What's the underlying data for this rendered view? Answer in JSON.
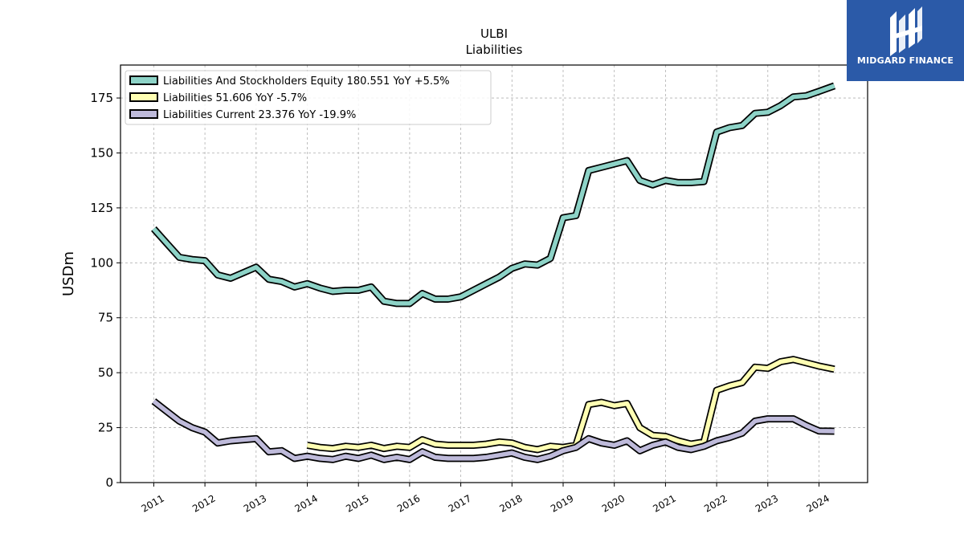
{
  "brand": {
    "name": "MIDGARD FINANCE",
    "color": "#2b5aa8"
  },
  "chart_data": {
    "type": "line",
    "title": "ULBI",
    "subtitle": "Liabilities",
    "ylabel": "USDm",
    "xlabel": "",
    "x_tick_labels": [
      "2011",
      "2012",
      "2013",
      "2014",
      "2015",
      "2016",
      "2017",
      "2018",
      "2019",
      "2020",
      "2021",
      "2022",
      "2023",
      "2024"
    ],
    "y_tick_labels": [
      "0",
      "25",
      "50",
      "75",
      "100",
      "125",
      "150",
      "175"
    ],
    "ylim": [
      0,
      190
    ],
    "grid": true,
    "legend_position": "top-left",
    "series": [
      {
        "name": "Liabilities And Stockholders Equity  180.551 YoY +5.5%",
        "color": "#8dd3c7",
        "points": [
          [
            2011.0,
            115.5
          ],
          [
            2011.25,
            109
          ],
          [
            2011.5,
            102.5
          ],
          [
            2011.75,
            101.5
          ],
          [
            2012.0,
            101
          ],
          [
            2012.25,
            94.5
          ],
          [
            2012.5,
            93
          ],
          [
            2012.75,
            95.5
          ],
          [
            2013.0,
            98
          ],
          [
            2013.25,
            92.5
          ],
          [
            2013.5,
            91.5
          ],
          [
            2013.75,
            89
          ],
          [
            2014.0,
            90.5
          ],
          [
            2014.25,
            88.5
          ],
          [
            2014.5,
            87
          ],
          [
            2014.75,
            87.5
          ],
          [
            2015.0,
            87.5
          ],
          [
            2015.25,
            89
          ],
          [
            2015.5,
            82.5
          ],
          [
            2015.75,
            81.5
          ],
          [
            2016.0,
            81.5
          ],
          [
            2016.25,
            86
          ],
          [
            2016.5,
            83.5
          ],
          [
            2016.75,
            83.5
          ],
          [
            2017.0,
            84.5
          ],
          [
            2017.25,
            87.5
          ],
          [
            2017.5,
            90.5
          ],
          [
            2017.75,
            93.5
          ],
          [
            2018.0,
            97.5
          ],
          [
            2018.25,
            99.5
          ],
          [
            2018.5,
            99
          ],
          [
            2018.75,
            102
          ],
          [
            2019.0,
            120.5
          ],
          [
            2019.25,
            121.5
          ],
          [
            2019.5,
            142
          ],
          [
            2019.75,
            143.5
          ],
          [
            2020.0,
            145
          ],
          [
            2020.25,
            146.5
          ],
          [
            2020.5,
            137.5
          ],
          [
            2020.75,
            135.5
          ],
          [
            2021.0,
            137.5
          ],
          [
            2021.25,
            136.5
          ],
          [
            2021.5,
            136.5
          ],
          [
            2021.75,
            137
          ],
          [
            2022.0,
            159.5
          ],
          [
            2022.25,
            161.5
          ],
          [
            2022.5,
            162.5
          ],
          [
            2022.75,
            168
          ],
          [
            2023.0,
            168.5
          ],
          [
            2023.25,
            171.5
          ],
          [
            2023.5,
            175.5
          ],
          [
            2023.75,
            176
          ],
          [
            2024.0,
            178
          ],
          [
            2024.3,
            180.551
          ]
        ]
      },
      {
        "name": "Liabilities  51.606 YoY -5.7%",
        "color": "#ffffb3",
        "points": [
          [
            2014.0,
            17
          ],
          [
            2014.25,
            16
          ],
          [
            2014.5,
            15.5
          ],
          [
            2014.75,
            16.5
          ],
          [
            2015.0,
            16
          ],
          [
            2015.25,
            17
          ],
          [
            2015.5,
            15.5
          ],
          [
            2015.75,
            16.5
          ],
          [
            2016.0,
            16
          ],
          [
            2016.25,
            19.5
          ],
          [
            2016.5,
            17.5
          ],
          [
            2016.75,
            17
          ],
          [
            2017.0,
            17
          ],
          [
            2017.25,
            17
          ],
          [
            2017.5,
            17.5
          ],
          [
            2017.75,
            18.5
          ],
          [
            2018.0,
            18
          ],
          [
            2018.25,
            16
          ],
          [
            2018.5,
            15
          ],
          [
            2018.75,
            16.5
          ],
          [
            2019.0,
            16
          ],
          [
            2019.25,
            17
          ],
          [
            2019.5,
            35.5
          ],
          [
            2019.75,
            36.5
          ],
          [
            2020.0,
            35
          ],
          [
            2020.25,
            36
          ],
          [
            2020.5,
            25
          ],
          [
            2020.75,
            21.5
          ],
          [
            2021.0,
            21
          ],
          [
            2021.25,
            19
          ],
          [
            2021.5,
            17.5
          ],
          [
            2021.75,
            18.5
          ],
          [
            2022.0,
            42
          ],
          [
            2022.25,
            44
          ],
          [
            2022.5,
            45.5
          ],
          [
            2022.75,
            52.5
          ],
          [
            2023.0,
            52
          ],
          [
            2023.25,
            55
          ],
          [
            2023.5,
            56
          ],
          [
            2023.75,
            54.5
          ],
          [
            2024.0,
            53
          ],
          [
            2024.3,
            51.606
          ]
        ]
      },
      {
        "name": "Liabilities Current  23.376 YoY -19.9%",
        "color": "#bebada",
        "points": [
          [
            2011.0,
            37
          ],
          [
            2011.25,
            32.5
          ],
          [
            2011.5,
            28
          ],
          [
            2011.75,
            25
          ],
          [
            2012.0,
            23
          ],
          [
            2012.25,
            18
          ],
          [
            2012.5,
            19
          ],
          [
            2012.75,
            19.5
          ],
          [
            2013.0,
            20
          ],
          [
            2013.25,
            14
          ],
          [
            2013.5,
            14.5
          ],
          [
            2013.75,
            11
          ],
          [
            2014.0,
            12
          ],
          [
            2014.25,
            11
          ],
          [
            2014.5,
            10.5
          ],
          [
            2014.75,
            12
          ],
          [
            2015.0,
            11
          ],
          [
            2015.25,
            12.5
          ],
          [
            2015.5,
            10.5
          ],
          [
            2015.75,
            11.5
          ],
          [
            2016.0,
            10.5
          ],
          [
            2016.25,
            14
          ],
          [
            2016.5,
            11.5
          ],
          [
            2016.75,
            11
          ],
          [
            2017.0,
            11
          ],
          [
            2017.25,
            11
          ],
          [
            2017.5,
            11.5
          ],
          [
            2017.75,
            12.5
          ],
          [
            2018.0,
            13.5
          ],
          [
            2018.25,
            11.5
          ],
          [
            2018.5,
            10.5
          ],
          [
            2018.75,
            12
          ],
          [
            2019.0,
            14.5
          ],
          [
            2019.25,
            16
          ],
          [
            2019.5,
            20
          ],
          [
            2019.75,
            18
          ],
          [
            2020.0,
            17
          ],
          [
            2020.25,
            19
          ],
          [
            2020.5,
            14.5
          ],
          [
            2020.75,
            17
          ],
          [
            2021.0,
            18.5
          ],
          [
            2021.25,
            16
          ],
          [
            2021.5,
            15
          ],
          [
            2021.75,
            16.5
          ],
          [
            2022.0,
            19
          ],
          [
            2022.25,
            20.5
          ],
          [
            2022.5,
            22.5
          ],
          [
            2022.75,
            28
          ],
          [
            2023.0,
            29
          ],
          [
            2023.25,
            29
          ],
          [
            2023.5,
            29
          ],
          [
            2023.75,
            26
          ],
          [
            2024.0,
            23.5
          ],
          [
            2024.3,
            23.376
          ]
        ]
      }
    ]
  }
}
